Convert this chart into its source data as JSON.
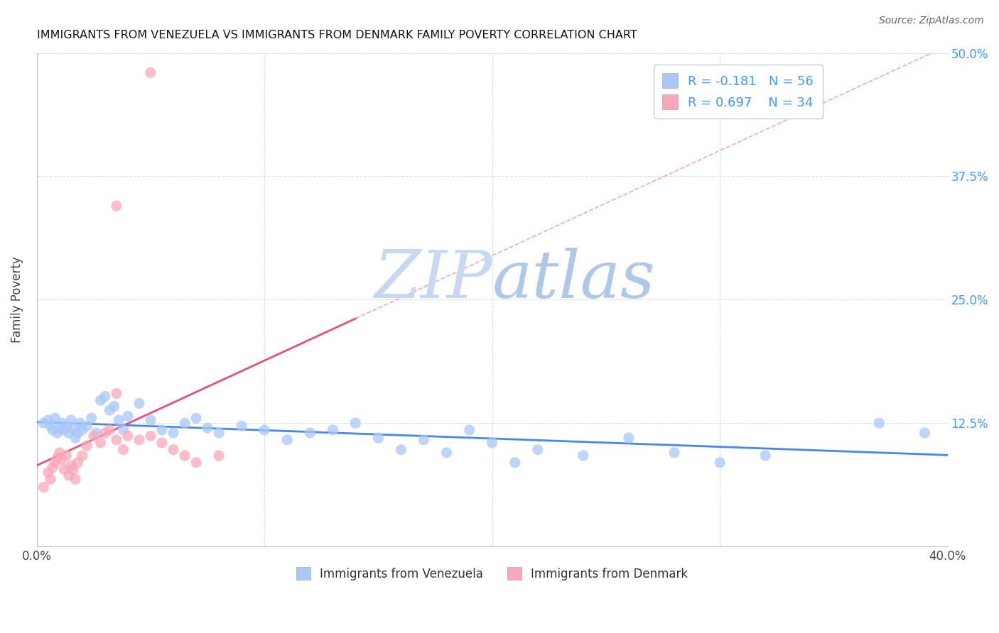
{
  "title": "IMMIGRANTS FROM VENEZUELA VS IMMIGRANTS FROM DENMARK FAMILY POVERTY CORRELATION CHART",
  "source": "Source: ZipAtlas.com",
  "ylabel": "Family Poverty",
  "xlim": [
    0.0,
    0.4
  ],
  "ylim": [
    0.0,
    0.5
  ],
  "venezuela_R": -0.181,
  "venezuela_N": 56,
  "denmark_R": 0.697,
  "denmark_N": 34,
  "venezuela_color": "#a8c8f8",
  "denmark_color": "#f8a8b8",
  "venezuela_line_color": "#4488ee",
  "denmark_line_color": "#e8507a",
  "watermark_zip_color": "#c8d8ee",
  "watermark_atlas_color": "#b8cce4",
  "right_tick_color": "#4499ff",
  "venezuela_x": [
    0.003,
    0.005,
    0.006,
    0.007,
    0.008,
    0.009,
    0.01,
    0.011,
    0.012,
    0.013,
    0.014,
    0.015,
    0.016,
    0.017,
    0.018,
    0.019,
    0.02,
    0.022,
    0.024,
    0.026,
    0.028,
    0.03,
    0.032,
    0.034,
    0.036,
    0.038,
    0.04,
    0.045,
    0.05,
    0.055,
    0.06,
    0.065,
    0.07,
    0.075,
    0.08,
    0.09,
    0.1,
    0.11,
    0.12,
    0.13,
    0.14,
    0.15,
    0.16,
    0.17,
    0.18,
    0.19,
    0.2,
    0.21,
    0.22,
    0.24,
    0.26,
    0.28,
    0.3,
    0.32,
    0.37,
    0.39
  ],
  "venezuela_y": [
    0.125,
    0.128,
    0.122,
    0.118,
    0.13,
    0.115,
    0.12,
    0.125,
    0.118,
    0.122,
    0.115,
    0.128,
    0.12,
    0.11,
    0.115,
    0.125,
    0.118,
    0.122,
    0.13,
    0.115,
    0.148,
    0.152,
    0.138,
    0.142,
    0.128,
    0.118,
    0.132,
    0.145,
    0.128,
    0.118,
    0.115,
    0.125,
    0.13,
    0.12,
    0.115,
    0.122,
    0.118,
    0.108,
    0.115,
    0.118,
    0.125,
    0.11,
    0.098,
    0.108,
    0.095,
    0.118,
    0.105,
    0.085,
    0.098,
    0.092,
    0.11,
    0.095,
    0.085,
    0.092,
    0.125,
    0.115
  ],
  "denmark_x": [
    0.003,
    0.005,
    0.006,
    0.007,
    0.008,
    0.009,
    0.01,
    0.011,
    0.012,
    0.013,
    0.014,
    0.015,
    0.016,
    0.017,
    0.018,
    0.02,
    0.022,
    0.025,
    0.028,
    0.03,
    0.032,
    0.035,
    0.038,
    0.04,
    0.045,
    0.05,
    0.055,
    0.06,
    0.065,
    0.07,
    0.08,
    0.035,
    0.05,
    0.035
  ],
  "denmark_y": [
    0.06,
    0.075,
    0.068,
    0.08,
    0.085,
    0.09,
    0.095,
    0.088,
    0.078,
    0.092,
    0.072,
    0.082,
    0.078,
    0.068,
    0.085,
    0.092,
    0.102,
    0.112,
    0.105,
    0.115,
    0.118,
    0.108,
    0.098,
    0.112,
    0.108,
    0.112,
    0.105,
    0.098,
    0.092,
    0.085,
    0.092,
    0.345,
    0.48,
    0.155
  ]
}
